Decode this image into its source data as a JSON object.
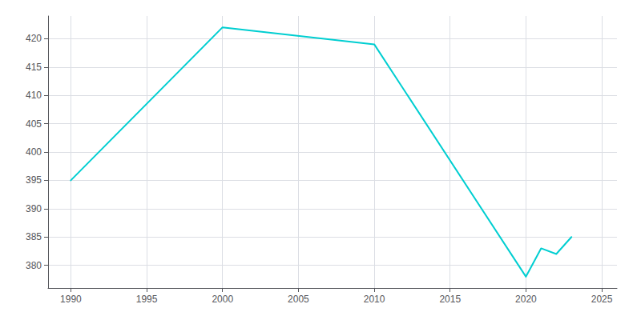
{
  "chart_data": {
    "type": "line",
    "x": [
      1990,
      2000,
      2010,
      2020,
      2021,
      2022,
      2023
    ],
    "values": [
      395,
      422,
      419,
      378,
      383,
      382,
      385
    ],
    "color": "#00CED1",
    "xlim": [
      1988.5,
      2026
    ],
    "xticks": [
      1990,
      1995,
      2000,
      2005,
      2010,
      2015,
      2020,
      2025
    ],
    "ylim": [
      376,
      424
    ],
    "yticks": [
      380,
      385,
      390,
      395,
      400,
      405,
      410,
      415,
      420
    ],
    "grid": true
  }
}
